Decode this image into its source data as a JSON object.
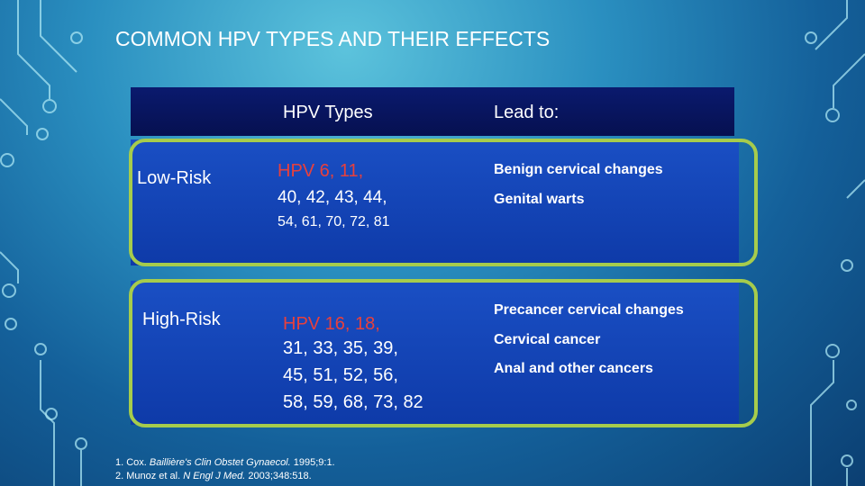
{
  "header": {
    "title": "COMMON HPV TYPES AND THEIR EFFECTS"
  },
  "table": {
    "columns": [
      "HPV Types",
      "Lead to:"
    ],
    "rows": [
      {
        "label": "Low-Risk",
        "types": [
          "HPV  6, 11,",
          "40, 42, 43, 44,",
          "54, 61, 70, 72, 81"
        ],
        "effects": [
          "Benign cervical changes",
          "Genital warts"
        ]
      },
      {
        "label": "High-Risk",
        "types": [
          "HPV 16, 18,",
          "31, 33, 35, 39,",
          "45, 51, 52, 56,",
          "58, 59, 68, 73, 82"
        ],
        "effects": [
          "Precancer cervical changes",
          "Cervical cancer",
          "Anal and other cancers"
        ]
      }
    ]
  },
  "references": [
    [
      "1. Cox. ",
      "Baillière's Clin Obstet Gynaecol.",
      " 1995;9:1."
    ],
    [
      "2. Munoz et al. ",
      "N Engl J Med.",
      " 2003;348:518."
    ]
  ]
}
